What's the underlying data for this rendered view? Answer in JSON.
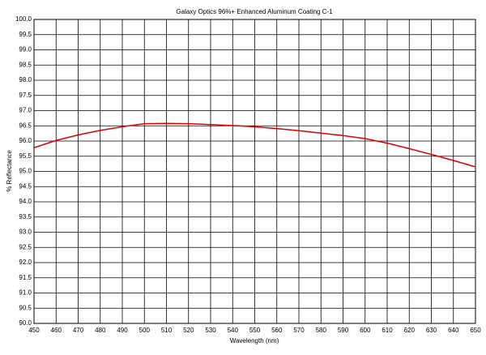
{
  "chart_data": {
    "type": "line",
    "title": "Galaxy Optics 96%+ Enhanced Aluminum Coating C-1",
    "x_label": "Wavelength (nm)",
    "y_label": "% Reflectance",
    "x": [
      450,
      460,
      470,
      480,
      490,
      500,
      510,
      520,
      530,
      540,
      550,
      560,
      570,
      580,
      590,
      600,
      610,
      620,
      630,
      640,
      650
    ],
    "series": [
      {
        "name": "Reflectance",
        "color": "#e00000",
        "values": [
          95.78,
          96.02,
          96.2,
          96.35,
          96.47,
          96.57,
          96.58,
          96.57,
          96.54,
          96.51,
          96.47,
          96.41,
          96.34,
          96.26,
          96.18,
          96.08,
          95.93,
          95.75,
          95.56,
          95.36,
          95.15
        ]
      }
    ],
    "xlim": [
      450,
      650
    ],
    "xticks": [
      450,
      460,
      470,
      480,
      490,
      500,
      510,
      520,
      530,
      540,
      550,
      560,
      570,
      580,
      590,
      600,
      610,
      620,
      630,
      640,
      650
    ],
    "ylim": [
      90,
      100
    ],
    "yticks": [
      {
        "value": 90,
        "label": "90.0"
      },
      90.5,
      {
        "value": 91,
        "label": "91.0"
      },
      91.5,
      {
        "value": 92,
        "label": "92.0"
      },
      92.5,
      {
        "value": 93,
        "label": "93.0"
      },
      93.5,
      {
        "value": 94,
        "label": "94.0"
      },
      94.5,
      {
        "value": 95,
        "label": "95.0"
      },
      95.5,
      {
        "value": 96,
        "label": "96.0"
      },
      96.5,
      {
        "value": 97,
        "label": "97.0"
      },
      97.5,
      {
        "value": 98,
        "label": "98.0"
      },
      98.5,
      {
        "value": 99,
        "label": "99.0"
      },
      99.5,
      {
        "value": 100,
        "label": "100.0"
      }
    ],
    "grid": true
  }
}
